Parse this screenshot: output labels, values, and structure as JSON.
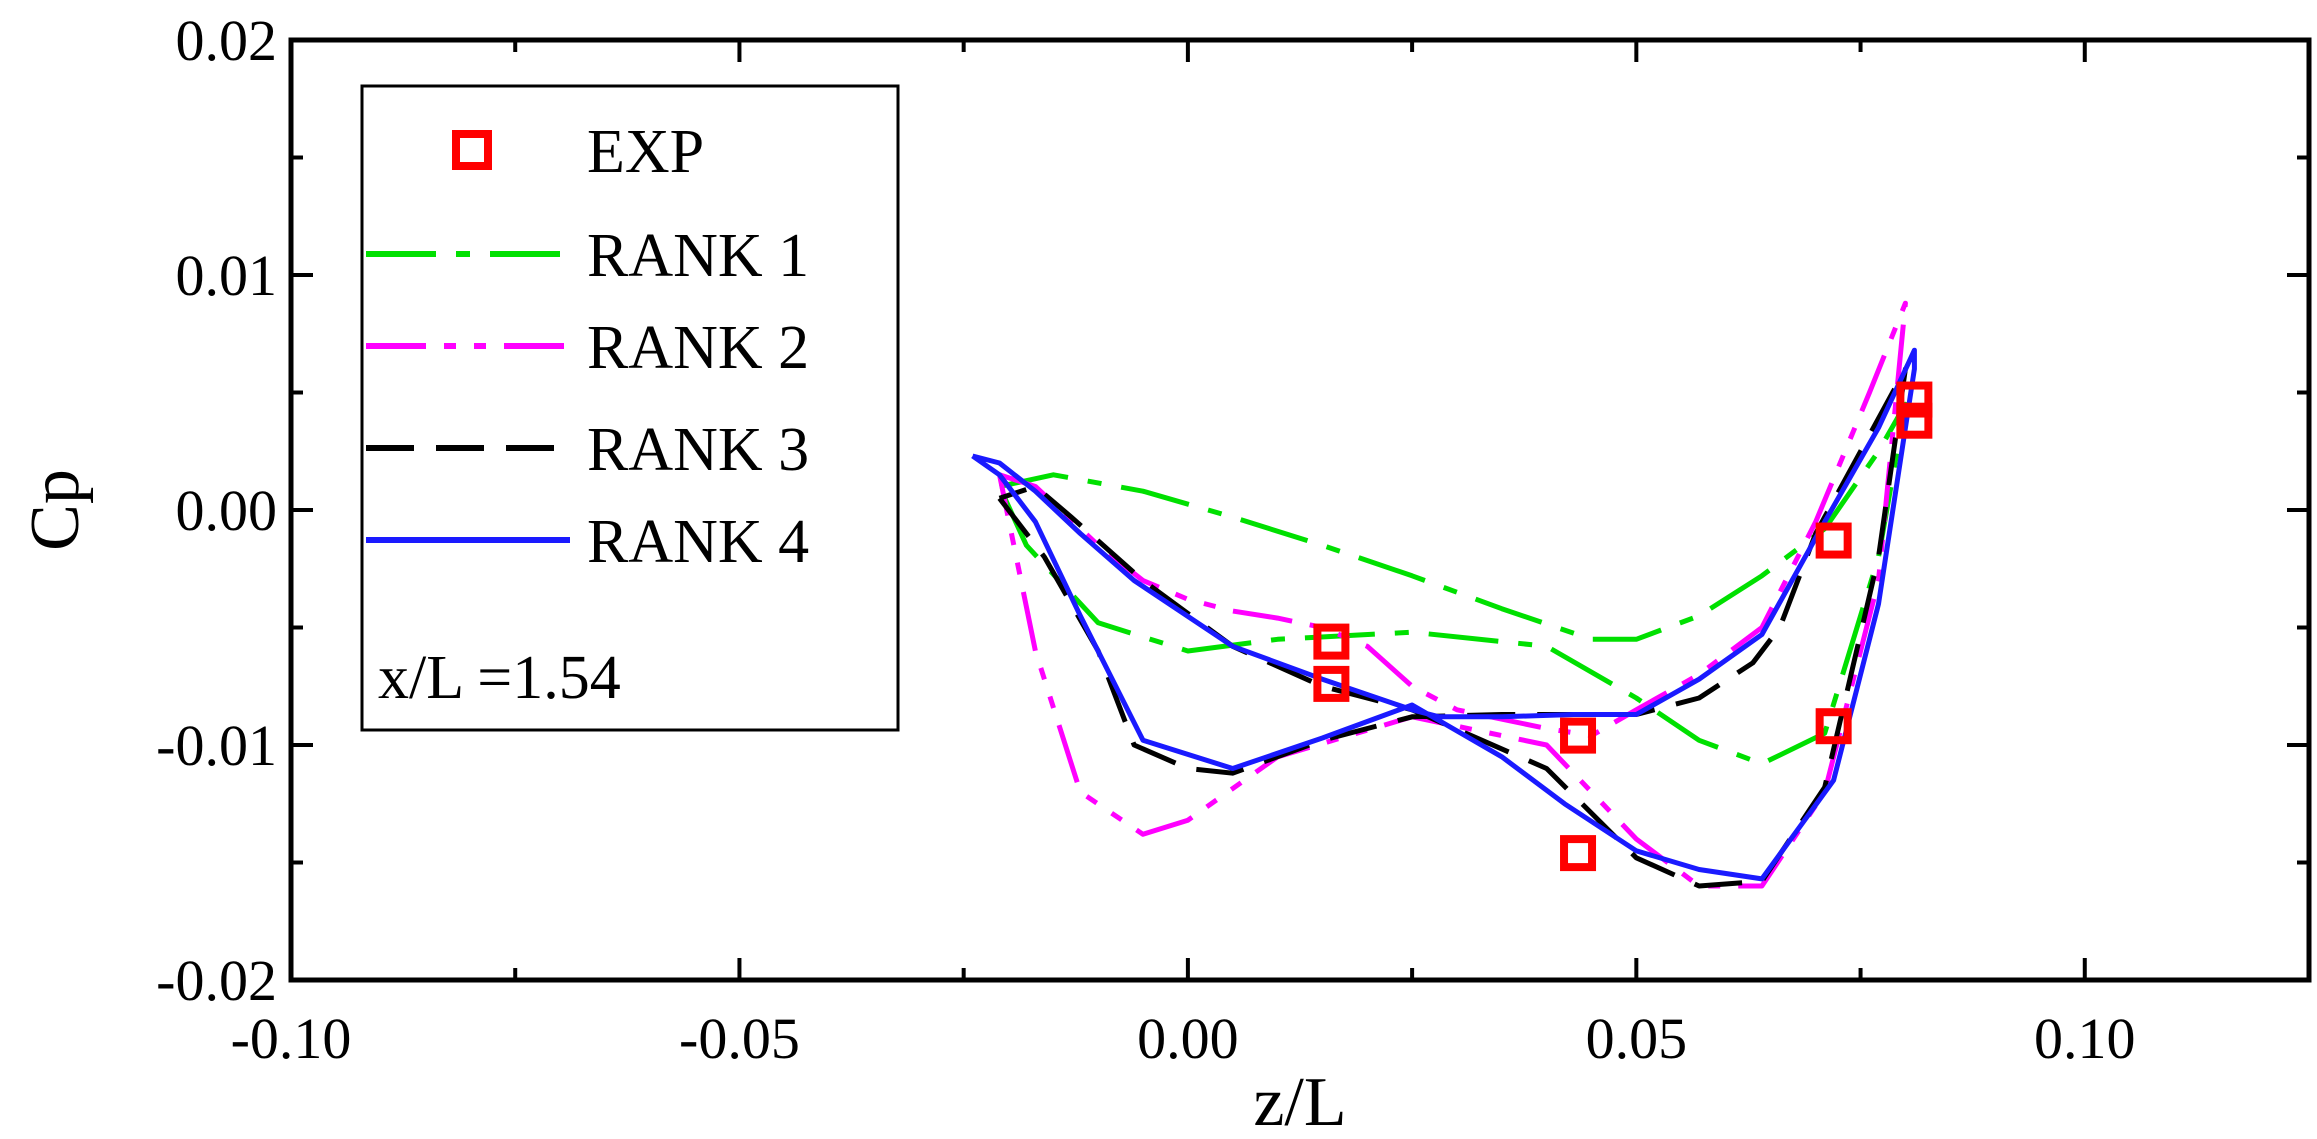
{
  "chart_data": {
    "type": "line",
    "title": "",
    "xlabel": "z/L",
    "ylabel": "Cp",
    "xlim": [
      -0.1,
      0.125
    ],
    "ylim": [
      -0.02,
      0.02
    ],
    "xticks": [
      -0.1,
      -0.05,
      0.0,
      0.05,
      0.1
    ],
    "xtick_labels": [
      "-0.10",
      "-0.05",
      "0.00",
      "0.05",
      "0.10"
    ],
    "yticks": [
      -0.02,
      -0.01,
      0.0,
      0.01,
      0.02
    ],
    "ytick_labels": [
      "-0.02",
      "-0.01",
      "0.00",
      "0.01",
      "0.02"
    ],
    "grid": false,
    "legend_position": "top-left",
    "annotation": "x/L =1.54",
    "series": [
      {
        "name": "EXP",
        "style": "markers-square",
        "color": "#ff0000",
        "x": [
          0.016,
          0.016,
          0.0435,
          0.0435,
          0.072,
          0.072,
          0.081,
          0.081
        ],
        "y": [
          -0.0056,
          -0.0074,
          -0.0096,
          -0.0146,
          -0.0013,
          -0.0092,
          0.0047,
          0.0038
        ]
      },
      {
        "name": "RANK 1",
        "style": "dash-dot",
        "color": "#00e000",
        "x": [
          -0.021,
          -0.015,
          -0.005,
          0.005,
          0.015,
          0.025,
          0.035,
          0.045,
          0.05,
          0.057,
          0.064,
          0.071,
          0.077,
          0.08,
          0.077,
          0.071,
          0.064,
          0.057,
          0.05,
          0.04,
          0.025,
          0.01,
          0.0,
          -0.01,
          -0.018,
          -0.021
        ],
        "y": [
          0.001,
          0.0015,
          0.0008,
          -0.0003,
          -0.0015,
          -0.0028,
          -0.0042,
          -0.0055,
          -0.0055,
          -0.0045,
          -0.0028,
          -0.0008,
          0.0025,
          0.0045,
          -0.002,
          -0.0095,
          -0.0108,
          -0.0098,
          -0.008,
          -0.0058,
          -0.0052,
          -0.0055,
          -0.006,
          -0.0048,
          -0.0015,
          0.001
        ]
      },
      {
        "name": "RANK 2",
        "style": "dash-dot-dot",
        "color": "#ff00ff",
        "x": [
          -0.021,
          -0.017,
          -0.01,
          -0.005,
          0.0,
          0.005,
          0.01,
          0.015,
          0.02,
          0.025,
          0.03,
          0.04,
          0.045,
          0.05,
          0.057,
          0.064,
          0.07,
          0.076,
          0.08,
          0.077,
          0.071,
          0.064,
          0.057,
          0.05,
          0.04,
          0.025,
          0.01,
          0.0,
          -0.005,
          -0.012,
          -0.017,
          -0.021
        ],
        "y": [
          0.0015,
          0.001,
          -0.0015,
          -0.003,
          -0.0038,
          -0.0043,
          -0.0046,
          -0.005,
          -0.0058,
          -0.0075,
          -0.0085,
          -0.0093,
          -0.0096,
          -0.0085,
          -0.007,
          -0.005,
          -0.0005,
          0.005,
          0.0088,
          -0.003,
          -0.012,
          -0.016,
          -0.016,
          -0.014,
          -0.01,
          -0.0088,
          -0.0105,
          -0.0132,
          -0.0138,
          -0.012,
          -0.006,
          0.0015
        ]
      },
      {
        "name": "RANK 3",
        "style": "dashed",
        "color": "#000000",
        "x": [
          -0.021,
          -0.016,
          -0.01,
          -0.006,
          0.0,
          0.005,
          0.015,
          0.025,
          0.035,
          0.045,
          0.05,
          0.057,
          0.063,
          0.066,
          0.07,
          0.075,
          0.08,
          0.077,
          0.071,
          0.064,
          0.057,
          0.05,
          0.04,
          0.025,
          0.015,
          0.005,
          -0.005,
          -0.013,
          -0.017,
          -0.021
        ],
        "y": [
          0.0005,
          -0.002,
          -0.006,
          -0.01,
          -0.011,
          -0.0112,
          -0.0098,
          -0.0088,
          -0.0087,
          -0.0087,
          -0.0087,
          -0.008,
          -0.0065,
          -0.005,
          -0.001,
          0.0025,
          0.006,
          -0.002,
          -0.0118,
          -0.0158,
          -0.016,
          -0.0148,
          -0.011,
          -0.0085,
          -0.0075,
          -0.0058,
          -0.003,
          -0.0003,
          0.001,
          0.0005
        ]
      },
      {
        "name": "RANK 4",
        "style": "solid",
        "color": "#1a1aff",
        "x": [
          -0.024,
          -0.021,
          -0.017,
          -0.012,
          -0.006,
          0.005,
          0.015,
          0.025,
          0.028,
          0.035,
          0.043,
          0.05,
          0.057,
          0.064,
          0.071,
          0.077,
          0.081,
          0.081,
          0.077,
          0.072,
          0.064,
          0.057,
          0.05,
          0.042,
          0.035,
          0.025,
          0.015,
          0.005,
          -0.005,
          -0.012,
          -0.017,
          -0.021,
          -0.024
        ],
        "y": [
          0.0023,
          0.002,
          0.0008,
          -0.001,
          -0.003,
          -0.0058,
          -0.0072,
          -0.0085,
          -0.0088,
          -0.0088,
          -0.0087,
          -0.0087,
          -0.0072,
          -0.0053,
          -0.0005,
          0.0035,
          0.0068,
          0.006,
          -0.004,
          -0.0115,
          -0.0157,
          -0.0153,
          -0.0145,
          -0.0125,
          -0.0105,
          -0.0083,
          -0.0097,
          -0.011,
          -0.0098,
          -0.0045,
          -0.0005,
          0.0015,
          0.0023
        ]
      }
    ]
  }
}
